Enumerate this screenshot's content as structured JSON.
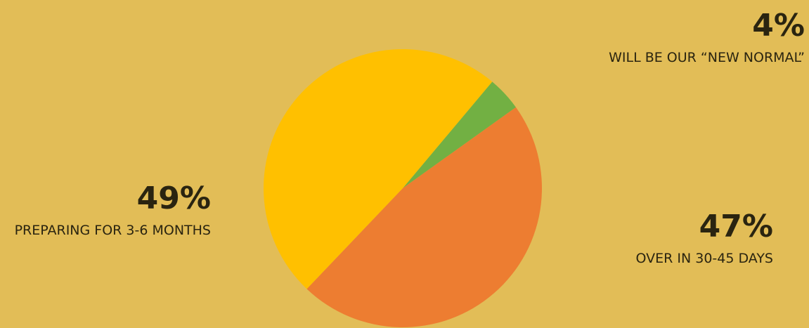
{
  "chart_data": {
    "type": "pie",
    "categories": [
      "WILL BE OUR “NEW NORMAL”",
      "OVER IN 30-45 DAYS",
      "PREPARING FOR 3-6 MONTHS"
    ],
    "values": [
      4,
      47,
      49
    ],
    "value_labels": [
      "4%",
      "47%",
      "49%"
    ],
    "colors": [
      "#72b043",
      "#ed7d31",
      "#ffc000"
    ]
  }
}
